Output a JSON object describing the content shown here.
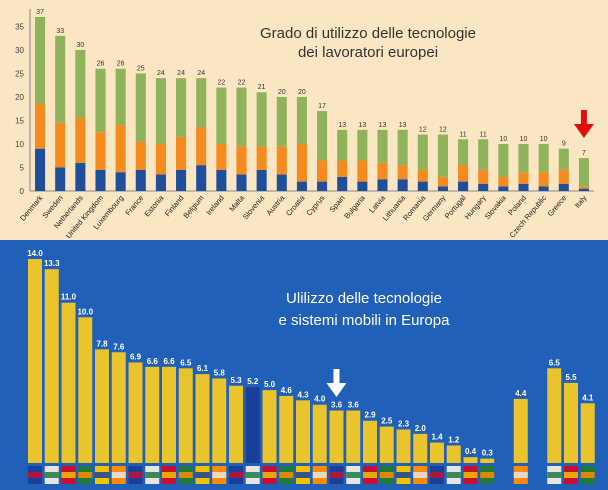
{
  "chart_data": [
    {
      "type": "bar",
      "stacked": true,
      "title": "Grado di utilizzo delle tecnologie\ndei lavoratori europei",
      "categories": [
        "Denmark",
        "Sweden",
        "Netherlands",
        "United Kingdom",
        "Luxembourg",
        "France",
        "Estonia",
        "Finland",
        "Belgium",
        "Ireland",
        "Malta",
        "Slovenia",
        "Austria",
        "Croatia",
        "Cyprus",
        "Spain",
        "Bulgaria",
        "Latvia",
        "Lithuania",
        "Romania",
        "Germany",
        "Portugal",
        "Hungary",
        "Slovakia",
        "Poland",
        "Czech Republic",
        "Greece",
        "Italy"
      ],
      "totals": [
        37,
        33,
        30,
        26,
        26,
        25,
        24,
        24,
        24,
        22,
        22,
        21,
        20,
        20,
        17,
        13,
        13,
        13,
        13,
        12,
        12,
        11,
        11,
        10,
        10,
        10,
        9,
        7
      ],
      "series": [
        {
          "values": [
            9,
            5,
            6,
            4.5,
            4,
            4.5,
            3.5,
            4.5,
            5.5,
            4.5,
            3.5,
            4.5,
            3.5,
            2,
            2,
            3,
            2,
            2.5,
            2.5,
            2,
            1,
            2,
            1.5,
            1,
            1.5,
            1,
            1.5,
            0.5
          ]
        },
        {
          "values": [
            9.5,
            9.5,
            9.5,
            8,
            10,
            6,
            6.5,
            7,
            8,
            5.5,
            6,
            5,
            6,
            8,
            4.5,
            3.5,
            4.5,
            3.5,
            3,
            2.5,
            2,
            3.5,
            3,
            2,
            2.5,
            3,
            3,
            0.5
          ]
        },
        {
          "values": [
            18.5,
            18.5,
            14.5,
            13.5,
            12,
            14.5,
            14,
            12.5,
            10.5,
            12,
            12.5,
            11.5,
            10.5,
            10,
            10.5,
            6.5,
            6.5,
            7,
            7.5,
            7.5,
            9,
            5.5,
            6.5,
            7,
            6,
            6,
            4.5,
            6
          ]
        }
      ],
      "colors": [
        "#1f4e9a",
        "#f58a1f",
        "#8fb35a"
      ],
      "ylim": [
        0,
        37
      ],
      "yticks": [
        0,
        5,
        10,
        15,
        20,
        25,
        30,
        35
      ],
      "highlight_arrow": {
        "category": "Italy",
        "color": "#e01010"
      },
      "background": "#fbe6c4",
      "grid": false
    },
    {
      "type": "bar",
      "title": "Ulilizzo delle tecnologie\ne sistemi mobili in Europa",
      "values": [
        14.0,
        13.3,
        11.0,
        10.0,
        7.8,
        7.6,
        6.9,
        6.6,
        6.6,
        6.5,
        6.1,
        5.8,
        5.3,
        5.2,
        5.0,
        4.6,
        4.3,
        4.0,
        3.6,
        3.6,
        2.9,
        2.5,
        2.3,
        2.0,
        1.4,
        1.2,
        0.4,
        0.3,
        null,
        4.4,
        null,
        6.5,
        5.5,
        4.1
      ],
      "value_labels": [
        "14.0",
        "13.3",
        "11.0",
        "10.0",
        "7.8",
        "7.6",
        "6.9",
        "6.6",
        "6.6",
        "6.5",
        "6.1",
        "5.8",
        "5.3",
        "5.2",
        "5.0",
        "4.6",
        "4.3",
        "4.0",
        "3.6",
        "3.6",
        "2.9",
        "2.5",
        "2.3",
        "2.0",
        "1.4",
        "1.2",
        "0.4",
        "0.3",
        "",
        "4.4",
        "",
        "6.5",
        "5.5",
        "4.1"
      ],
      "bar_colors": [
        "#e9c42c",
        "#e9c42c",
        "#e9c42c",
        "#e9c42c",
        "#e9c42c",
        "#e9c42c",
        "#e9c42c",
        "#e9c42c",
        "#e9c42c",
        "#e9c42c",
        "#e9c42c",
        "#e9c42c",
        "#e9c42c",
        "#1a3f99",
        "#e9c42c",
        "#e9c42c",
        "#e9c42c",
        "#e9c42c",
        "#e9c42c",
        "#e9c42c",
        "#e9c42c",
        "#e9c42c",
        "#e9c42c",
        "#e9c42c",
        "#e9c42c",
        "#e9c42c",
        "#e9c42c",
        "#e9c42c",
        "",
        "#e9c42c",
        "",
        "#e9c42c",
        "#e9c42c",
        "#e9c42c"
      ],
      "ylim": [
        0,
        14.5
      ],
      "highlight_arrow": {
        "index": 18,
        "color": "#ffffff"
      },
      "background": "#2160b8",
      "grid": false
    }
  ]
}
